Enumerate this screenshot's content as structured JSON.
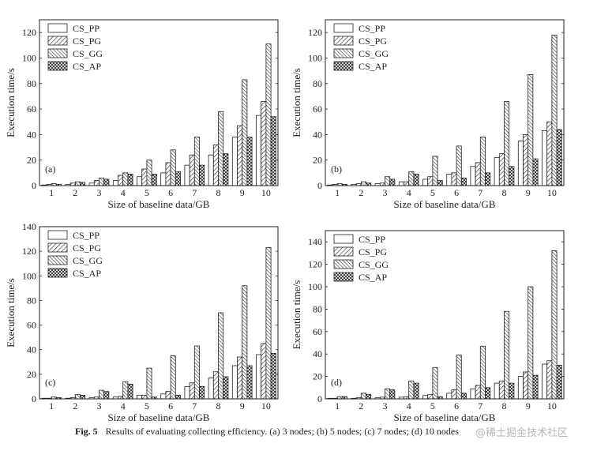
{
  "chart_data": [
    {
      "type": "bar",
      "panel_label": "(a)",
      "xlabel": "Size of baseline data/GB",
      "ylabel": "Execution time/s",
      "ylim": [
        0,
        130
      ],
      "yticks": [
        0,
        20,
        40,
        60,
        80,
        100,
        120
      ],
      "categories": [
        "1",
        "2",
        "3",
        "4",
        "5",
        "6",
        "7",
        "8",
        "9",
        "10"
      ],
      "legend_position": "top-left",
      "series": [
        {
          "name": "CS_PP",
          "values": [
            0.5,
            1,
            2,
            4,
            7,
            10,
            16,
            24,
            38,
            55
          ]
        },
        {
          "name": "CS_PG",
          "values": [
            1,
            2,
            4,
            8,
            13,
            18,
            24,
            32,
            47,
            66
          ]
        },
        {
          "name": "CS_GG",
          "values": [
            1.5,
            3,
            6,
            10,
            20,
            28,
            38,
            58,
            83,
            111
          ]
        },
        {
          "name": "CS_AP",
          "values": [
            1,
            2.5,
            5,
            9,
            9,
            11,
            16,
            25,
            38,
            54
          ]
        }
      ]
    },
    {
      "type": "bar",
      "panel_label": "(b)",
      "xlabel": "Size of baseline data/GB",
      "ylabel": "Execution time/s",
      "ylim": [
        0,
        130
      ],
      "yticks": [
        0,
        20,
        40,
        60,
        80,
        100,
        120
      ],
      "categories": [
        "1",
        "2",
        "3",
        "4",
        "5",
        "6",
        "7",
        "8",
        "9",
        "10"
      ],
      "legend_position": "top-left",
      "series": [
        {
          "name": "CS_PP",
          "values": [
            0.5,
            1,
            1.5,
            3,
            5,
            9,
            15,
            22,
            35,
            43
          ]
        },
        {
          "name": "CS_PG",
          "values": [
            1,
            1.5,
            2,
            3,
            7,
            10,
            18,
            25,
            40,
            50
          ]
        },
        {
          "name": "CS_GG",
          "values": [
            1.5,
            3,
            7,
            11,
            23,
            31,
            38,
            66,
            87,
            118
          ]
        },
        {
          "name": "CS_AP",
          "values": [
            1,
            2,
            5,
            9,
            4,
            6,
            10,
            15,
            21,
            44
          ]
        }
      ]
    },
    {
      "type": "bar",
      "panel_label": "(c)",
      "xlabel": "Size of baseline data/GB",
      "ylabel": "Execution time/s",
      "ylim": [
        0,
        140
      ],
      "yticks": [
        0,
        20,
        40,
        60,
        80,
        100,
        120,
        140
      ],
      "categories": [
        "1",
        "2",
        "3",
        "4",
        "5",
        "6",
        "7",
        "8",
        "9",
        "10"
      ],
      "legend_position": "top-left",
      "series": [
        {
          "name": "CS_PP",
          "values": [
            0.5,
            0.5,
            1,
            1.5,
            3,
            4,
            10,
            17,
            27,
            36
          ]
        },
        {
          "name": "CS_PG",
          "values": [
            0.5,
            1,
            1.5,
            2,
            3,
            6,
            13,
            22,
            34,
            45
          ]
        },
        {
          "name": "CS_GG",
          "values": [
            1.5,
            3.5,
            7,
            14,
            25,
            35,
            43,
            70,
            92,
            123
          ]
        },
        {
          "name": "CS_AP",
          "values": [
            1,
            3,
            6,
            12,
            1.5,
            3,
            10,
            18,
            27,
            37
          ]
        }
      ]
    },
    {
      "type": "bar",
      "panel_label": "(d)",
      "xlabel": "Size of baseline data/GB",
      "ylabel": "Execution time/s",
      "ylim": [
        0,
        150
      ],
      "yticks": [
        0,
        20,
        40,
        60,
        80,
        100,
        120,
        140
      ],
      "categories": [
        "1",
        "2",
        "3",
        "4",
        "5",
        "6",
        "7",
        "8",
        "9",
        "10"
      ],
      "legend_position": "top-left",
      "series": [
        {
          "name": "CS_PP",
          "values": [
            0.5,
            0.5,
            1,
            1.5,
            3,
            5,
            9,
            14,
            20,
            31
          ]
        },
        {
          "name": "CS_PG",
          "values": [
            0.5,
            1,
            1.5,
            2,
            4,
            8,
            12,
            16,
            24,
            34
          ]
        },
        {
          "name": "CS_GG",
          "values": [
            2,
            5,
            9,
            16,
            28,
            39,
            47,
            78,
            100,
            132
          ]
        },
        {
          "name": "CS_AP",
          "values": [
            2,
            4,
            8,
            14,
            2,
            5,
            10,
            14,
            21,
            30
          ]
        }
      ]
    }
  ],
  "caption": {
    "fig_label": "Fig. 5",
    "text": "Results of evaluating collecting efficiency. (a) 3 nodes; (b) 5 nodes; (c) 7 nodes; (d) 10 nodes"
  },
  "watermark": "@稀土掘金技术社区"
}
